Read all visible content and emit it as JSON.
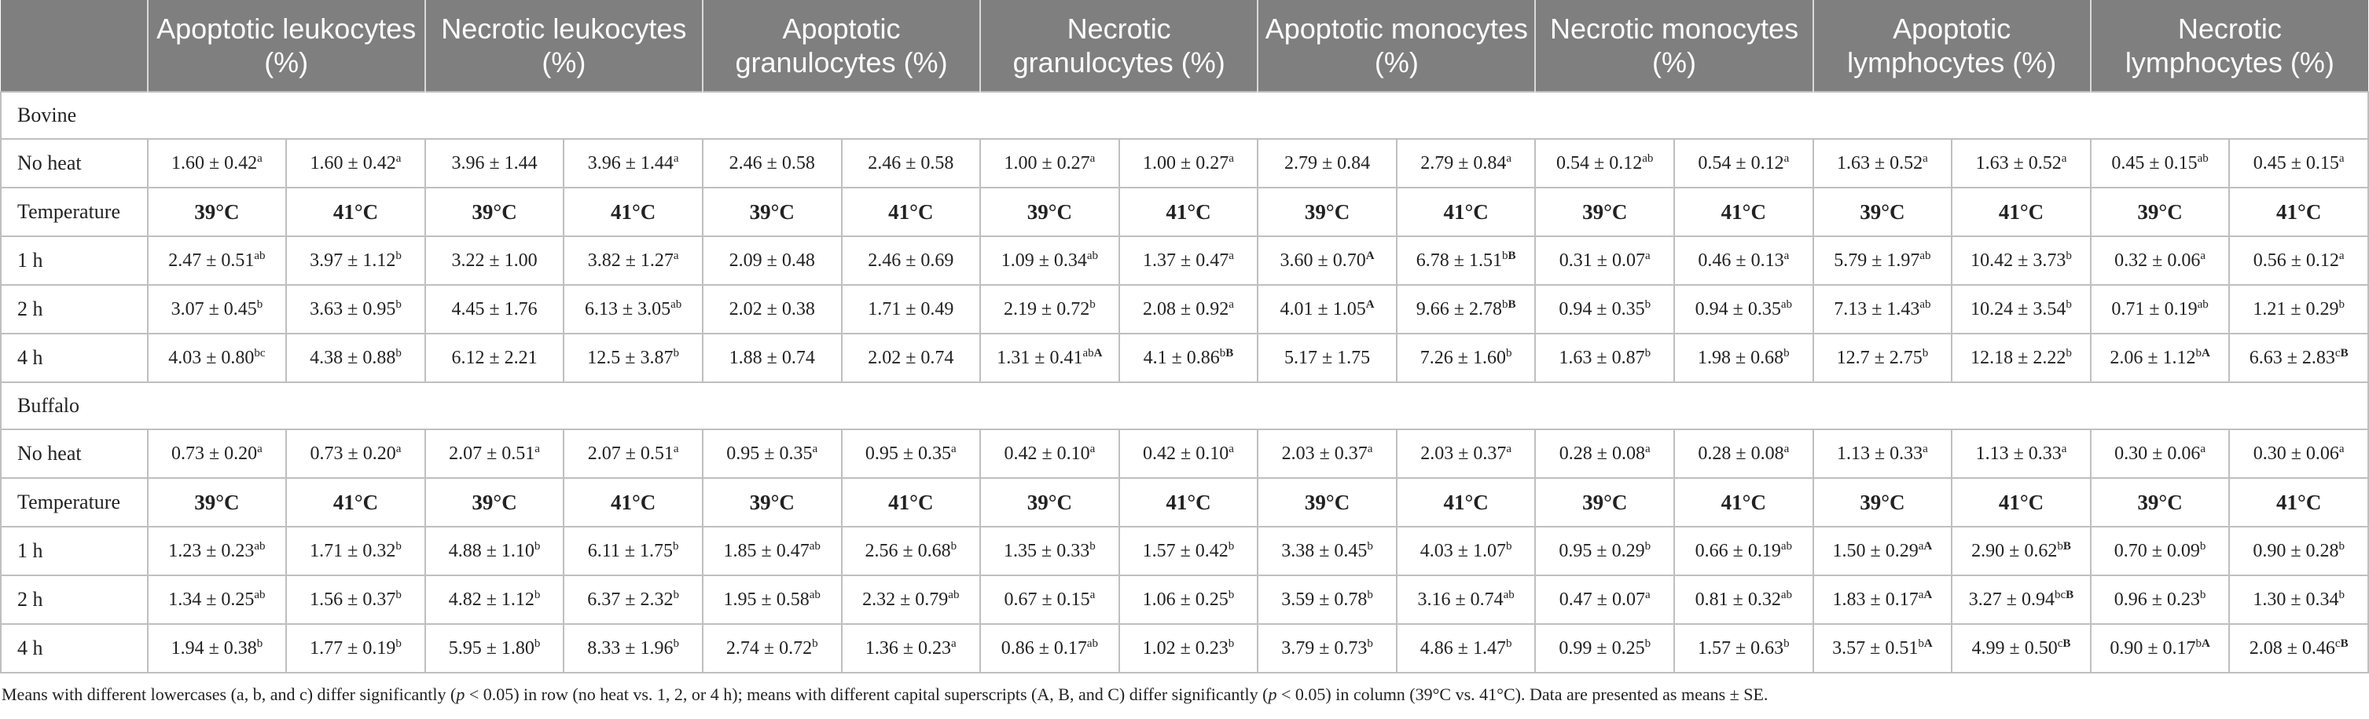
{
  "headers": [
    "",
    "Apoptotic leukocytes (%)",
    "Necrotic leukocytes (%)",
    "Apoptotic granulocytes (%)",
    "Necrotic granulocytes (%)",
    "Apoptotic monocytes (%)",
    "Necrotic monocytes (%)",
    "Apoptotic lymphocytes (%)",
    "Necrotic lymphocytes (%)"
  ],
  "sections": [
    {
      "name": "Bovine",
      "rows": [
        {
          "label": "No heat",
          "type": "data",
          "cells": [
            [
              "1.60 ± 0.42",
              "a",
              ""
            ],
            [
              "1.60 ± 0.42",
              "a",
              ""
            ],
            [
              "3.96 ± 1.44",
              "",
              ""
            ],
            [
              "3.96 ± 1.44",
              "a",
              ""
            ],
            [
              "2.46 ± 0.58",
              "",
              ""
            ],
            [
              "2.46 ± 0.58",
              "",
              ""
            ],
            [
              "1.00 ± 0.27",
              "a",
              ""
            ],
            [
              "1.00 ± 0.27",
              "a",
              ""
            ],
            [
              "2.79 ± 0.84",
              "",
              ""
            ],
            [
              "2.79 ± 0.84",
              "a",
              ""
            ],
            [
              "0.54 ± 0.12",
              "ab",
              ""
            ],
            [
              "0.54 ± 0.12",
              "a",
              ""
            ],
            [
              "1.63 ± 0.52",
              "a",
              ""
            ],
            [
              "1.63 ± 0.52",
              "a",
              ""
            ],
            [
              "0.45 ± 0.15",
              "ab",
              ""
            ],
            [
              "0.45 ± 0.15",
              "a",
              ""
            ]
          ]
        },
        {
          "label": "Temperature",
          "type": "temp",
          "cells": [
            "39°C",
            "41°C",
            "39°C",
            "41°C",
            "39°C",
            "41°C",
            "39°C",
            "41°C",
            "39°C",
            "41°C",
            "39°C",
            "41°C",
            "39°C",
            "41°C",
            "39°C",
            "41°C"
          ]
        },
        {
          "label": "1 h",
          "type": "data",
          "cells": [
            [
              "2.47 ± 0.51",
              "ab",
              ""
            ],
            [
              "3.97 ± 1.12",
              "b",
              ""
            ],
            [
              "3.22 ± 1.00",
              "",
              ""
            ],
            [
              "3.82 ± 1.27",
              "a",
              ""
            ],
            [
              "2.09 ± 0.48",
              "",
              ""
            ],
            [
              "2.46 ± 0.69",
              "",
              ""
            ],
            [
              "1.09 ± 0.34",
              "ab",
              ""
            ],
            [
              "1.37 ± 0.47",
              "a",
              ""
            ],
            [
              "3.60 ± 0.70",
              "",
              "A"
            ],
            [
              "6.78 ± 1.51",
              "b",
              "B"
            ],
            [
              "0.31 ± 0.07",
              "a",
              ""
            ],
            [
              "0.46 ± 0.13",
              "a",
              ""
            ],
            [
              "5.79 ± 1.97",
              "ab",
              ""
            ],
            [
              "10.42 ± 3.73",
              "b",
              ""
            ],
            [
              "0.32 ± 0.06",
              "a",
              ""
            ],
            [
              "0.56 ± 0.12",
              "a",
              ""
            ]
          ]
        },
        {
          "label": "2 h",
          "type": "data",
          "cells": [
            [
              "3.07 ± 0.45",
              "b",
              ""
            ],
            [
              "3.63 ± 0.95",
              "b",
              ""
            ],
            [
              "4.45 ± 1.76",
              "",
              ""
            ],
            [
              "6.13 ± 3.05",
              "ab",
              ""
            ],
            [
              "2.02 ± 0.38",
              "",
              ""
            ],
            [
              "1.71 ± 0.49",
              "",
              ""
            ],
            [
              "2.19 ± 0.72",
              "b",
              ""
            ],
            [
              "2.08 ± 0.92",
              "a",
              ""
            ],
            [
              "4.01 ± 1.05",
              "",
              "A"
            ],
            [
              "9.66 ± 2.78",
              "b",
              "B"
            ],
            [
              "0.94 ± 0.35",
              "b",
              ""
            ],
            [
              "0.94 ± 0.35",
              "ab",
              ""
            ],
            [
              "7.13 ± 1.43",
              "ab",
              ""
            ],
            [
              "10.24 ± 3.54",
              "b",
              ""
            ],
            [
              "0.71 ± 0.19",
              "ab",
              ""
            ],
            [
              "1.21 ± 0.29",
              "b",
              ""
            ]
          ]
        },
        {
          "label": "4 h",
          "type": "data",
          "cells": [
            [
              "4.03 ± 0.80",
              "bc",
              ""
            ],
            [
              "4.38 ± 0.88",
              "b",
              ""
            ],
            [
              "6.12 ± 2.21",
              "",
              ""
            ],
            [
              "12.5 ± 3.87",
              "b",
              ""
            ],
            [
              "1.88 ± 0.74",
              "",
              ""
            ],
            [
              "2.02 ± 0.74",
              "",
              ""
            ],
            [
              "1.31 ± 0.41",
              "ab",
              "A"
            ],
            [
              "4.1 ± 0.86",
              "b",
              "B"
            ],
            [
              "5.17 ± 1.75",
              "",
              ""
            ],
            [
              "7.26 ± 1.60",
              "b",
              ""
            ],
            [
              "1.63 ± 0.87",
              "b",
              ""
            ],
            [
              "1.98 ± 0.68",
              "b",
              ""
            ],
            [
              "12.7 ± 2.75",
              "b",
              ""
            ],
            [
              "12.18 ± 2.22",
              "b",
              ""
            ],
            [
              "2.06 ± 1.12",
              "b",
              "A"
            ],
            [
              "6.63 ± 2.83",
              "c",
              "B"
            ]
          ]
        }
      ]
    },
    {
      "name": "Buffalo",
      "rows": [
        {
          "label": "No heat",
          "type": "data",
          "cells": [
            [
              "0.73 ± 0.20",
              "a",
              ""
            ],
            [
              "0.73 ± 0.20",
              "a",
              ""
            ],
            [
              "2.07 ± 0.51",
              "a",
              ""
            ],
            [
              "2.07 ± 0.51",
              "a",
              ""
            ],
            [
              "0.95 ± 0.35",
              "a",
              ""
            ],
            [
              "0.95 ± 0.35",
              "a",
              ""
            ],
            [
              "0.42 ± 0.10",
              "a",
              ""
            ],
            [
              "0.42 ± 0.10",
              "a",
              ""
            ],
            [
              "2.03 ± 0.37",
              "a",
              ""
            ],
            [
              "2.03 ± 0.37",
              "a",
              ""
            ],
            [
              "0.28 ± 0.08",
              "a",
              ""
            ],
            [
              "0.28 ± 0.08",
              "a",
              ""
            ],
            [
              "1.13 ± 0.33",
              "a",
              ""
            ],
            [
              "1.13 ± 0.33",
              "a",
              ""
            ],
            [
              "0.30 ± 0.06",
              "a",
              ""
            ],
            [
              "0.30 ± 0.06",
              "a",
              ""
            ]
          ]
        },
        {
          "label": "Temperature",
          "type": "temp",
          "cells": [
            "39°C",
            "41°C",
            "39°C",
            "41°C",
            "39°C",
            "41°C",
            "39°C",
            "41°C",
            "39°C",
            "41°C",
            "39°C",
            "41°C",
            "39°C",
            "41°C",
            "39°C",
            "41°C"
          ]
        },
        {
          "label": "1 h",
          "type": "data",
          "cells": [
            [
              "1.23 ± 0.23",
              "ab",
              ""
            ],
            [
              "1.71 ± 0.32",
              "b",
              ""
            ],
            [
              "4.88 ± 1.10",
              "b",
              ""
            ],
            [
              "6.11 ± 1.75",
              "b",
              ""
            ],
            [
              "1.85 ± 0.47",
              "ab",
              ""
            ],
            [
              "2.56 ± 0.68",
              "b",
              ""
            ],
            [
              "1.35 ± 0.33",
              "b",
              ""
            ],
            [
              "1.57 ± 0.42",
              "b",
              ""
            ],
            [
              "3.38 ± 0.45",
              "b",
              ""
            ],
            [
              "4.03 ± 1.07",
              "b",
              ""
            ],
            [
              "0.95 ± 0.29",
              "b",
              ""
            ],
            [
              "0.66 ± 0.19",
              "ab",
              ""
            ],
            [
              "1.50 ± 0.29",
              "a",
              "A"
            ],
            [
              "2.90 ± 0.62",
              "b",
              "B"
            ],
            [
              "0.70 ± 0.09",
              "b",
              ""
            ],
            [
              "0.90 ± 0.28",
              "b",
              ""
            ]
          ]
        },
        {
          "label": "2 h",
          "type": "data",
          "cells": [
            [
              "1.34 ± 0.25",
              "ab",
              ""
            ],
            [
              "1.56 ± 0.37",
              "b",
              ""
            ],
            [
              "4.82 ± 1.12",
              "b",
              ""
            ],
            [
              "6.37 ± 2.32",
              "b",
              ""
            ],
            [
              "1.95 ± 0.58",
              "ab",
              ""
            ],
            [
              "2.32 ± 0.79",
              "ab",
              ""
            ],
            [
              "0.67 ± 0.15",
              "a",
              ""
            ],
            [
              "1.06 ± 0.25",
              "b",
              ""
            ],
            [
              "3.59 ± 0.78",
              "b",
              ""
            ],
            [
              "3.16 ± 0.74",
              "ab",
              ""
            ],
            [
              "0.47 ± 0.07",
              "a",
              ""
            ],
            [
              "0.81 ± 0.32",
              "ab",
              ""
            ],
            [
              "1.83 ± 0.17",
              "a",
              "A"
            ],
            [
              "3.27 ± 0.94",
              "bc",
              "B"
            ],
            [
              "0.96 ± 0.23",
              "b",
              ""
            ],
            [
              "1.30 ± 0.34",
              "b",
              ""
            ]
          ]
        },
        {
          "label": "4 h",
          "type": "data",
          "cells": [
            [
              "1.94 ± 0.38",
              "b",
              ""
            ],
            [
              "1.77 ± 0.19",
              "b",
              ""
            ],
            [
              "5.95 ± 1.80",
              "b",
              ""
            ],
            [
              "8.33 ± 1.96",
              "b",
              ""
            ],
            [
              "2.74 ± 0.72",
              "b",
              ""
            ],
            [
              "1.36 ± 0.23",
              "a",
              ""
            ],
            [
              "0.86 ± 0.17",
              "ab",
              ""
            ],
            [
              "1.02 ± 0.23",
              "b",
              ""
            ],
            [
              "3.79 ± 0.73",
              "b",
              ""
            ],
            [
              "4.86 ± 1.47",
              "b",
              ""
            ],
            [
              "0.99 ± 0.25",
              "b",
              ""
            ],
            [
              "1.57 ± 0.63",
              "b",
              ""
            ],
            [
              "3.57 ± 0.51",
              "b",
              "A"
            ],
            [
              "4.99 ± 0.50",
              "c",
              "B"
            ],
            [
              "0.90 ± 0.17",
              "b",
              "A"
            ],
            [
              "2.08 ± 0.46",
              "c",
              "B"
            ]
          ]
        }
      ]
    }
  ],
  "footnote_parts": [
    "Means with different lowercases (a, b, and c) differ significantly (",
    "p",
    " < 0.05) in row (no heat vs. 1, 2, or 4 h); means with different capital superscripts (A, B, and C) differ significantly (",
    "p",
    " < 0.05) in column (39°C vs. 41°C). Data are presented as means ± SE."
  ]
}
